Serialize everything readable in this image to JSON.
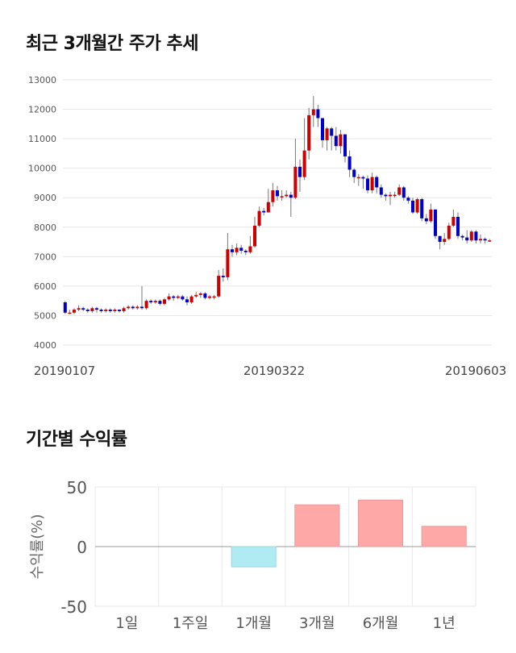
{
  "sections": {
    "price_title": "최근 3개월간 주가 추세",
    "returns_title": "기간별 수익률"
  },
  "chart_data": [
    {
      "type": "candlestick",
      "title": "최근 3개월간 주가 추세",
      "ylim": [
        4000,
        13000
      ],
      "yticks": [
        4000,
        5000,
        6000,
        7000,
        8000,
        9000,
        10000,
        11000,
        12000,
        13000
      ],
      "x_tick_labels": [
        "20190107",
        "20190322",
        "20190603"
      ],
      "grid": true,
      "up_color": "#cc0000",
      "down_color": "#0000cc",
      "candles": [
        [
          5450,
          5100,
          5500,
          5050
        ],
        [
          5100,
          5100,
          5200,
          5050
        ],
        [
          5100,
          5200,
          5250,
          5050
        ],
        [
          5200,
          5250,
          5350,
          5150
        ],
        [
          5250,
          5200,
          5300,
          5150
        ],
        [
          5200,
          5150,
          5250,
          5100
        ],
        [
          5150,
          5250,
          5300,
          5100
        ],
        [
          5250,
          5200,
          5300,
          5100
        ],
        [
          5200,
          5150,
          5250,
          5100
        ],
        [
          5150,
          5200,
          5250,
          5100
        ],
        [
          5200,
          5150,
          5250,
          5100
        ],
        [
          5150,
          5200,
          5250,
          5100
        ],
        [
          5200,
          5150,
          5200,
          5100
        ],
        [
          5150,
          5250,
          5300,
          5100
        ],
        [
          5250,
          5300,
          5350,
          5200
        ],
        [
          5300,
          5250,
          5350,
          5200
        ],
        [
          5250,
          5300,
          5350,
          5200
        ],
        [
          5300,
          5250,
          6000,
          5200
        ],
        [
          5250,
          5500,
          5550,
          5200
        ],
        [
          5500,
          5450,
          5550,
          5400
        ],
        [
          5450,
          5500,
          5550,
          5400
        ],
        [
          5500,
          5400,
          5550,
          5350
        ],
        [
          5400,
          5550,
          5600,
          5350
        ],
        [
          5550,
          5650,
          5750,
          5500
        ],
        [
          5650,
          5600,
          5700,
          5500
        ],
        [
          5600,
          5650,
          5700,
          5550
        ],
        [
          5650,
          5550,
          5700,
          5500
        ],
        [
          5550,
          5450,
          5650,
          5350
        ],
        [
          5450,
          5650,
          5700,
          5400
        ],
        [
          5650,
          5700,
          5800,
          5600
        ],
        [
          5700,
          5750,
          5800,
          5600
        ],
        [
          5750,
          5600,
          5800,
          5550
        ],
        [
          5600,
          5650,
          5700,
          5550
        ],
        [
          5650,
          5650,
          5700,
          5550
        ],
        [
          5650,
          6350,
          6550,
          5600
        ],
        [
          6350,
          6300,
          6600,
          6150
        ],
        [
          6300,
          7250,
          7800,
          6200
        ],
        [
          7250,
          7150,
          7400,
          7000
        ],
        [
          7150,
          7300,
          7450,
          7050
        ],
        [
          7300,
          7200,
          7400,
          7100
        ],
        [
          7200,
          7150,
          7250,
          7050
        ],
        [
          7150,
          7350,
          7700,
          7100
        ],
        [
          7350,
          8050,
          8350,
          7300
        ],
        [
          8050,
          8550,
          8700,
          8000
        ],
        [
          8550,
          8500,
          8650,
          8400
        ],
        [
          8500,
          8850,
          9300,
          8500
        ],
        [
          8850,
          9250,
          9500,
          8700
        ],
        [
          9250,
          9050,
          9400,
          8900
        ],
        [
          9050,
          9050,
          9250,
          8900
        ],
        [
          9050,
          9100,
          9250,
          9000
        ],
        [
          9100,
          9000,
          9200,
          8350
        ],
        [
          9000,
          10050,
          11000,
          8950
        ],
        [
          10050,
          9700,
          10300,
          9200
        ],
        [
          9700,
          10600,
          11700,
          9600
        ],
        [
          10600,
          11800,
          12050,
          10300
        ],
        [
          11800,
          12000,
          12450,
          11400
        ],
        [
          12000,
          11700,
          12150,
          11400
        ],
        [
          11700,
          10950,
          11500,
          10700
        ],
        [
          10950,
          11350,
          11400,
          10600
        ],
        [
          11350,
          11100,
          11400,
          10600
        ],
        [
          11100,
          10750,
          11400,
          10600
        ],
        [
          10750,
          11150,
          11300,
          10500
        ],
        [
          11150,
          10400,
          11000,
          10200
        ],
        [
          10400,
          9950,
          10600,
          9700
        ],
        [
          9950,
          9700,
          10000,
          9500
        ],
        [
          9700,
          9700,
          9800,
          9400
        ],
        [
          9700,
          9650,
          9750,
          9300
        ],
        [
          9650,
          9250,
          9750,
          9150
        ],
        [
          9250,
          9700,
          9850,
          9150
        ],
        [
          9700,
          9350,
          9750,
          9150
        ],
        [
          9350,
          9100,
          9450,
          9000
        ],
        [
          9100,
          9050,
          9150,
          8900
        ],
        [
          9050,
          9100,
          9200,
          8750
        ],
        [
          9100,
          9100,
          9200,
          9000
        ],
        [
          9100,
          9350,
          9450,
          9050
        ],
        [
          9350,
          9000,
          9400,
          8900
        ],
        [
          9000,
          8900,
          9050,
          8800
        ],
        [
          8900,
          8500,
          9000,
          8450
        ],
        [
          8500,
          8950,
          9000,
          8450
        ],
        [
          8950,
          8300,
          9000,
          8200
        ],
        [
          8300,
          8200,
          8450,
          8100
        ],
        [
          8200,
          8600,
          8800,
          8150
        ],
        [
          8600,
          7700,
          8400,
          7600
        ],
        [
          7700,
          7500,
          7650,
          7250
        ],
        [
          7500,
          7600,
          7800,
          7400
        ],
        [
          7600,
          8050,
          8150,
          7550
        ],
        [
          8050,
          8350,
          8600,
          8000
        ],
        [
          8350,
          7700,
          8500,
          7600
        ],
        [
          7700,
          7650,
          7750,
          7550
        ],
        [
          7650,
          7550,
          7900,
          7450
        ],
        [
          7550,
          7850,
          7900,
          7500
        ],
        [
          7850,
          7550,
          7900,
          7450
        ],
        [
          7550,
          7600,
          7750,
          7450
        ],
        [
          7600,
          7550,
          7650,
          7450
        ],
        [
          7550,
          7550,
          7600,
          7500
        ]
      ]
    },
    {
      "type": "bar",
      "title": "기간별 수익률",
      "ylabel": "수익률(%)",
      "categories": [
        "1일",
        "1주일",
        "1개월",
        "3개월",
        "6개월",
        "1년"
      ],
      "values": [
        0,
        0,
        -17,
        35,
        39,
        17
      ],
      "ylim": [
        -50,
        50
      ],
      "yticks": [
        -50,
        0,
        50
      ],
      "positive_color": "#ffa8a8",
      "negative_color": "#b0eaf2",
      "grid": true
    }
  ]
}
